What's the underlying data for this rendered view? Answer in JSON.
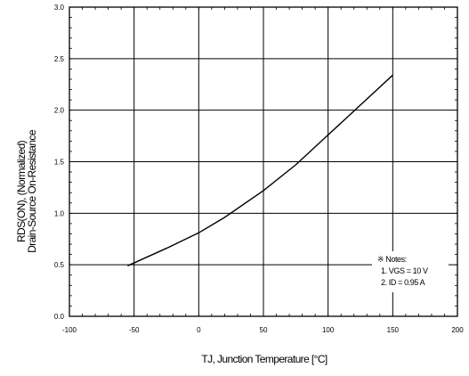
{
  "chart_data": {
    "type": "line",
    "xlabel": "TJ, Junction Temperature [°C]",
    "ylabel_line1": "RDS(ON), (Normalized)",
    "ylabel_line2": "Drain-Source On-Resistance",
    "xlim": [
      -100,
      200
    ],
    "ylim": [
      0.0,
      3.0
    ],
    "xticks": [
      -100,
      -50,
      0,
      50,
      100,
      150,
      200
    ],
    "yticks": [
      0.0,
      0.5,
      1.0,
      1.5,
      2.0,
      2.5,
      3.0
    ],
    "ytick_labels": [
      "0.0",
      "0.5",
      "1.0",
      "1.5",
      "2.0",
      "2.5",
      "3.0"
    ],
    "grid": true,
    "series": [
      {
        "x": [
          -55,
          -25,
          0,
          20,
          50,
          75,
          100,
          125,
          150
        ],
        "y": [
          0.49,
          0.66,
          0.81,
          0.96,
          1.22,
          1.47,
          1.76,
          2.05,
          2.34
        ]
      }
    ],
    "annotations": {
      "notes_title": "※ Notes:",
      "note1": "1. VGS = 10 V",
      "note2": "2. ID = 0.95 A"
    }
  }
}
